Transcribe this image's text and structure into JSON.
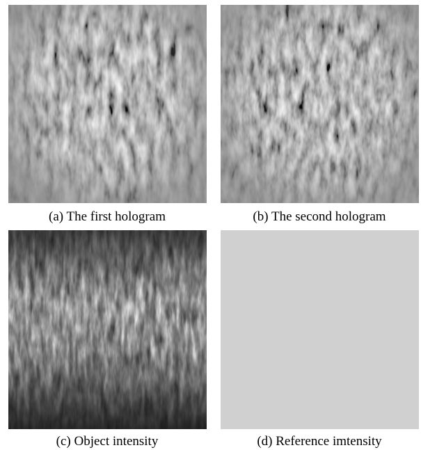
{
  "figure": {
    "panels": [
      {
        "caption": "(a) The first hologram"
      },
      {
        "caption": "(b) The second hologram"
      },
      {
        "caption": "(c) Object intensity"
      },
      {
        "caption": "(d) Reference imtensity"
      }
    ]
  }
}
